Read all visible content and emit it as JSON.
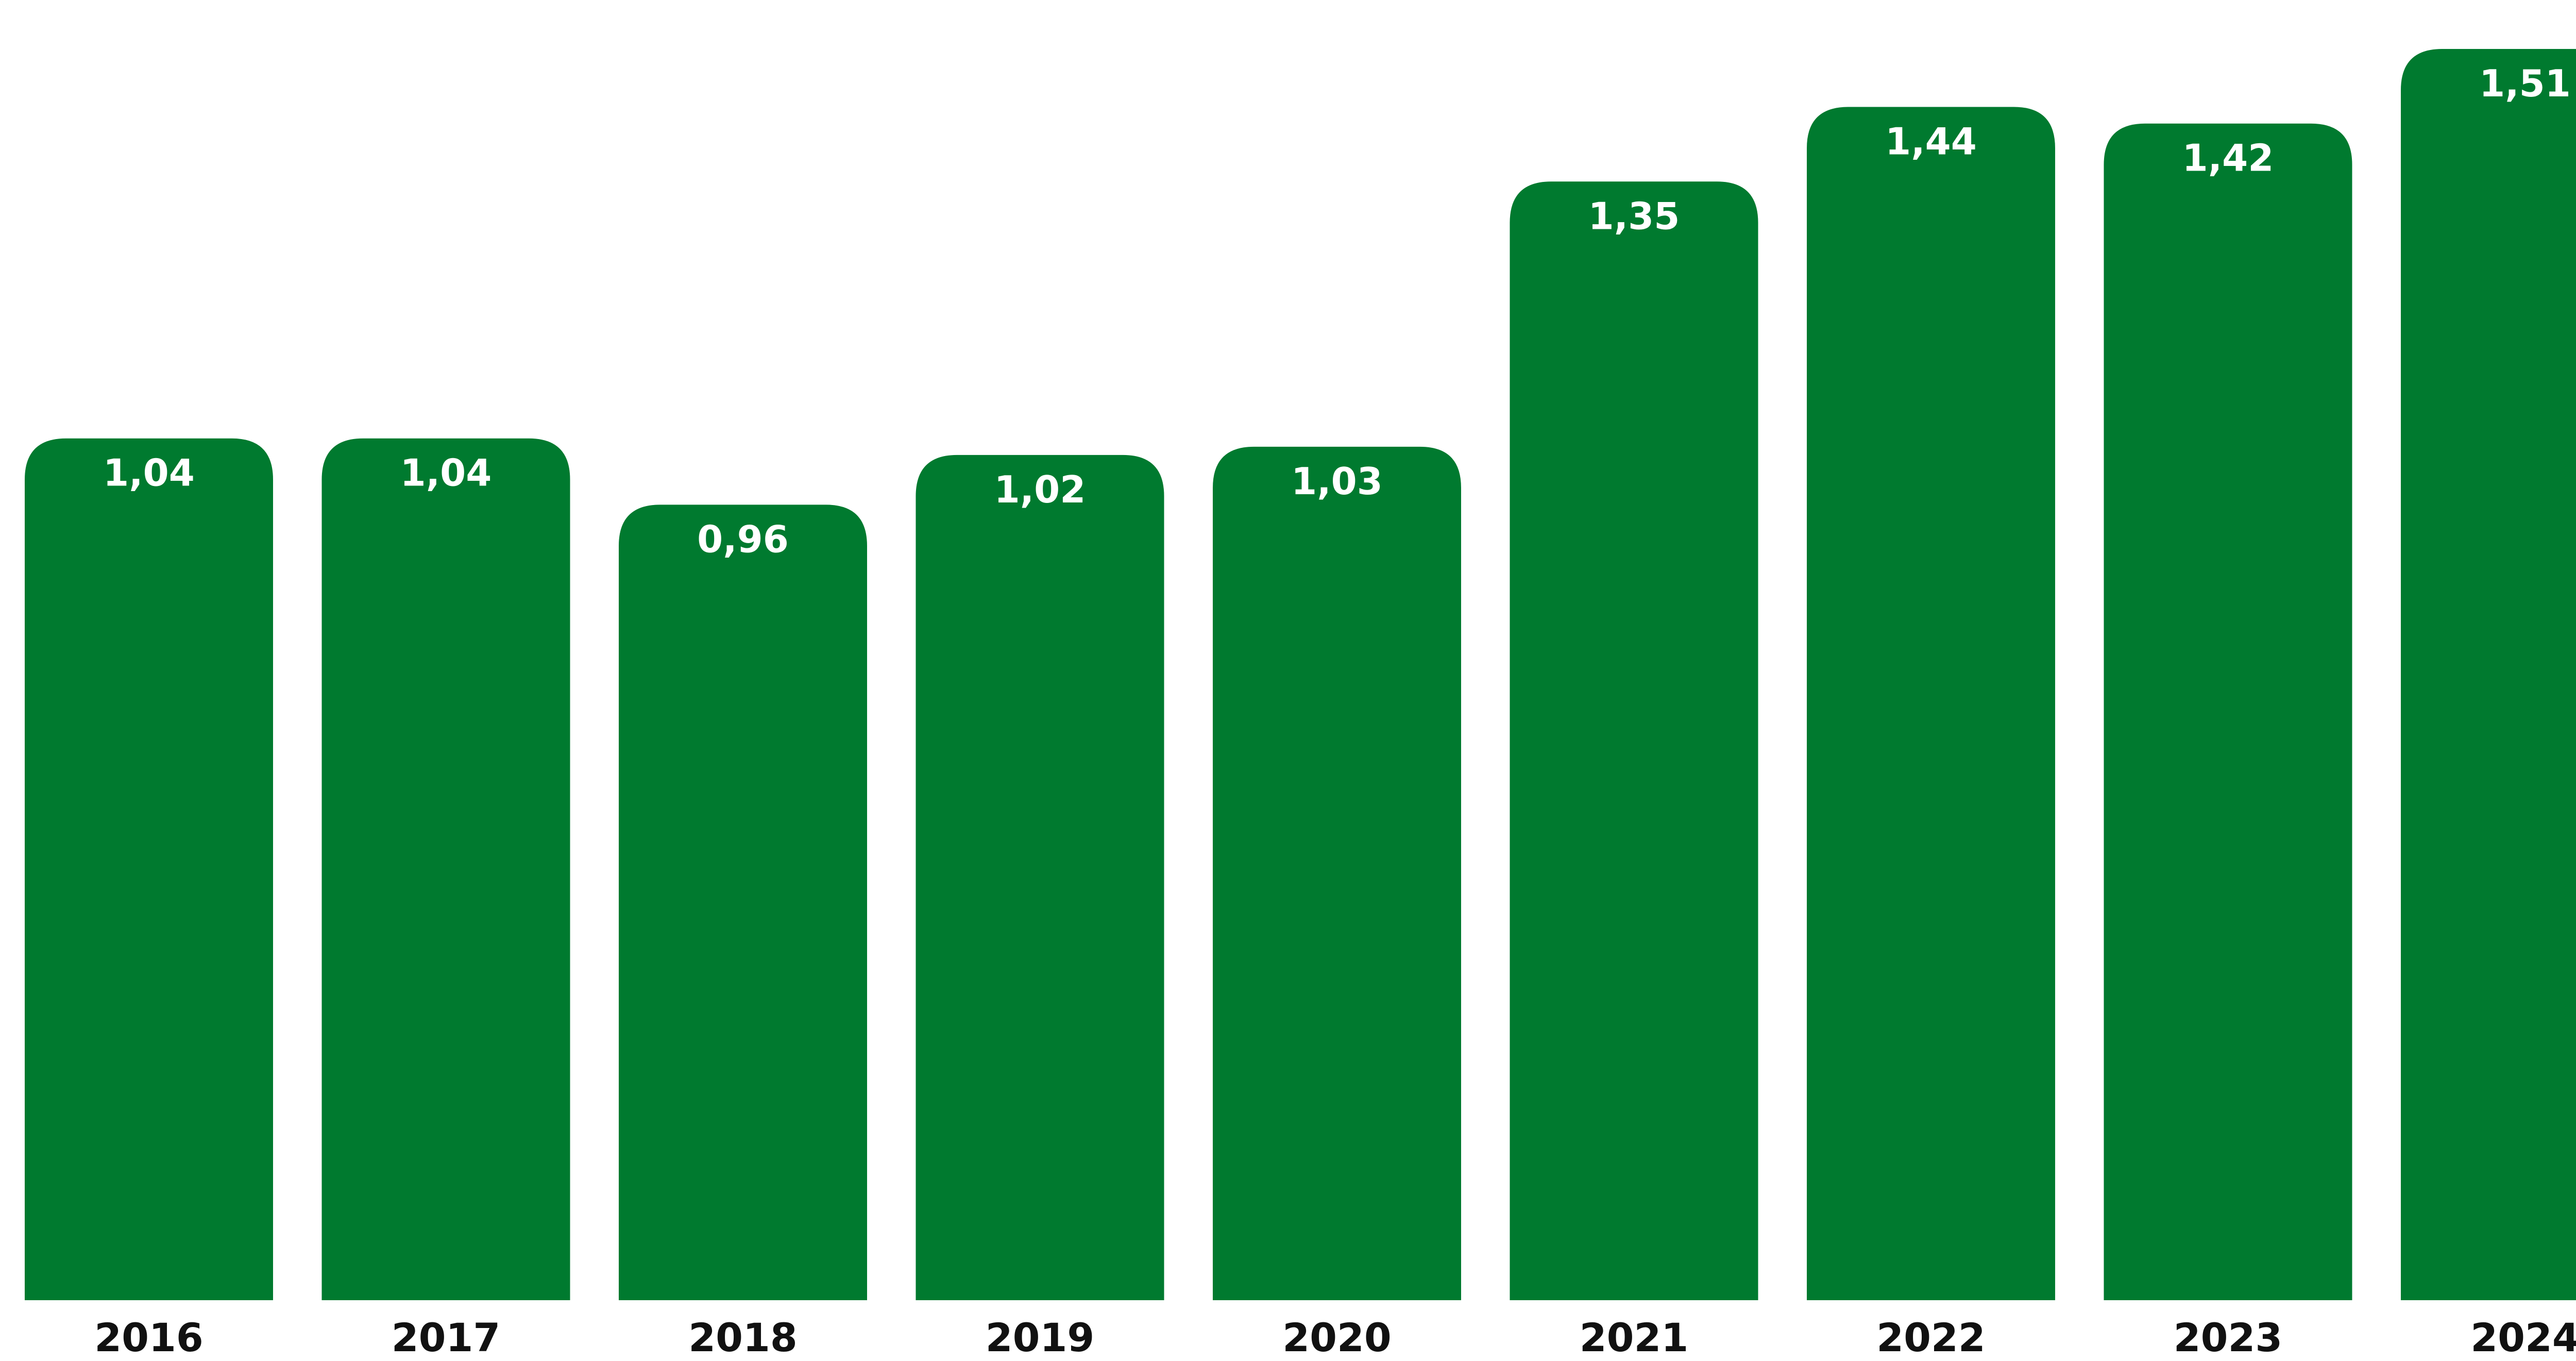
{
  "chart_data": {
    "type": "bar",
    "categories": [
      "2016",
      "2017",
      "2018",
      "2019",
      "2020",
      "2021",
      "2022",
      "2023",
      "2024"
    ],
    "values": [
      1.04,
      1.04,
      0.96,
      1.02,
      1.03,
      1.35,
      1.44,
      1.42,
      1.51
    ],
    "value_labels": [
      "1,04",
      "1,04",
      "0,96",
      "1,02",
      "1,03",
      "1,35",
      "1,44",
      "1,42",
      "1,51"
    ],
    "title": "",
    "xlabel": "",
    "ylabel": "",
    "ylim": [
      0,
      1.51
    ],
    "grid": false,
    "legend": "none",
    "data_labels": "inside-top",
    "bar_color": "#007a2f",
    "label_color": "#ffffff",
    "tick_color": "#111111"
  }
}
